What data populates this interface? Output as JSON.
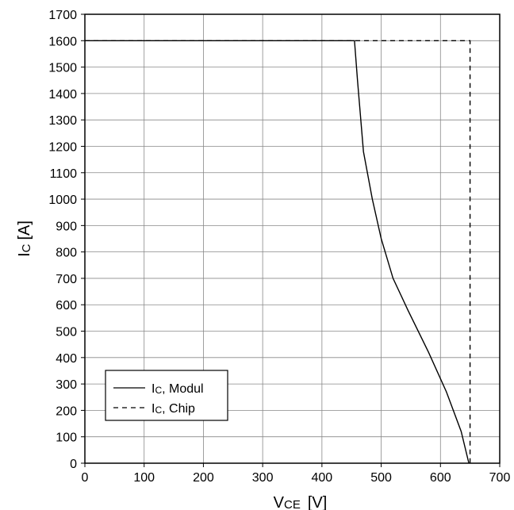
{
  "chart_data": {
    "type": "line",
    "title": "",
    "xlabel": {
      "main": "V",
      "sub": "CE",
      "unit": "[V]"
    },
    "ylabel": {
      "main": "I",
      "sub": "C",
      "unit": "[A]"
    },
    "xlim": [
      0,
      700
    ],
    "ylim": [
      0,
      1700
    ],
    "xticks": [
      0,
      100,
      200,
      300,
      400,
      500,
      600,
      700
    ],
    "yticks": [
      0,
      100,
      200,
      300,
      400,
      500,
      600,
      700,
      800,
      900,
      1000,
      1100,
      1200,
      1300,
      1400,
      1500,
      1600,
      1700
    ],
    "grid": true,
    "legend_position": "bottom-left",
    "series": [
      {
        "name": "IC, Modul",
        "legend": {
          "main": "I",
          "sub": "C",
          "rest": ", Modul"
        },
        "style": "solid",
        "x": [
          0,
          455,
          460,
          470,
          485,
          500,
          520,
          545,
          580,
          610,
          635,
          648
        ],
        "y": [
          1600,
          1600,
          1450,
          1180,
          1000,
          850,
          700,
          580,
          420,
          270,
          120,
          0
        ]
      },
      {
        "name": "IC, Chip",
        "legend": {
          "main": "I",
          "sub": "C",
          "rest": ", Chip"
        },
        "style": "dashed",
        "x": [
          0,
          650,
          650
        ],
        "y": [
          1600,
          1600,
          0
        ]
      }
    ]
  }
}
